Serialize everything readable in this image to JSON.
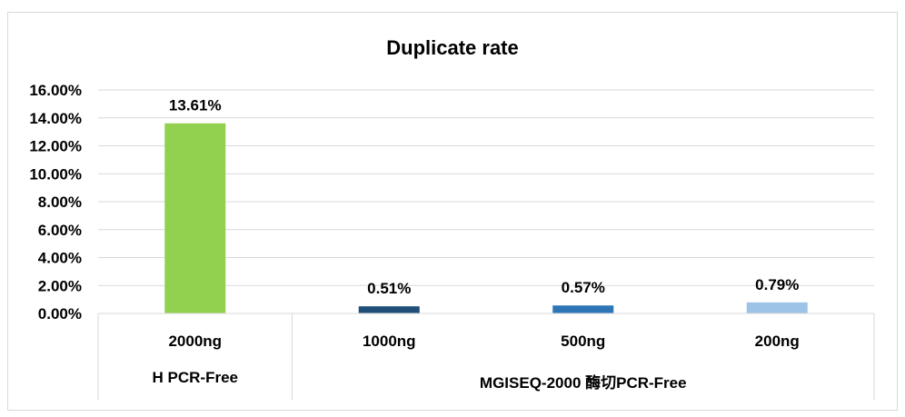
{
  "chart_data": {
    "type": "bar",
    "title": "Duplicate rate",
    "categories": [
      "2000ng",
      "1000ng",
      "500ng",
      "200ng"
    ],
    "values": [
      13.61,
      0.51,
      0.57,
      0.79
    ],
    "value_labels": [
      "13.61%",
      "0.51%",
      "0.57%",
      "0.79%"
    ],
    "bar_colors": [
      "#92d050",
      "#1f4e79",
      "#2e75b6",
      "#9dc3e6"
    ],
    "groups": [
      {
        "label": "H PCR-Free",
        "categories": [
          "2000ng"
        ]
      },
      {
        "label": "MGISEQ-2000 酶切PCR-Free",
        "categories": [
          "1000ng",
          "500ng",
          "200ng"
        ]
      }
    ],
    "y_ticks": [
      "0.00%",
      "2.00%",
      "4.00%",
      "6.00%",
      "8.00%",
      "10.00%",
      "12.00%",
      "14.00%",
      "16.00%"
    ],
    "ylim": [
      0,
      16
    ],
    "grid": true,
    "legend": "none",
    "xlabel": "",
    "ylabel": ""
  }
}
